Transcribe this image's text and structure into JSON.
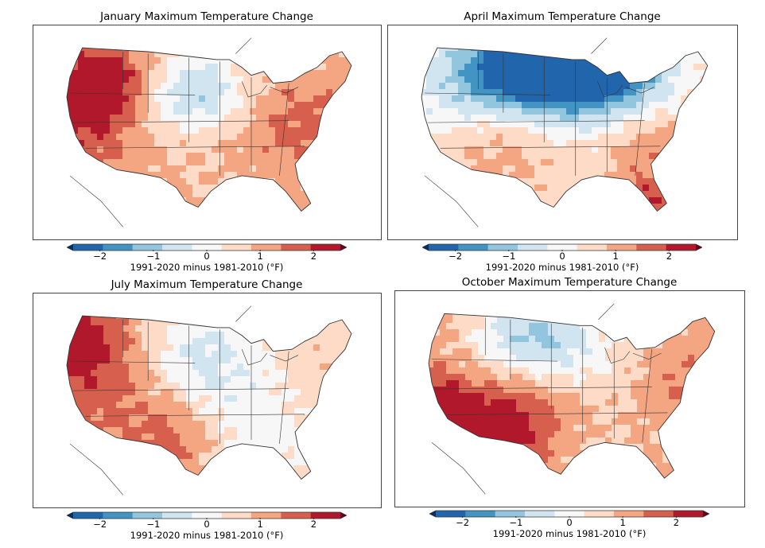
{
  "colorbar": {
    "label": "1991-2020 minus 1981-2010 (°F)",
    "ticks": [
      -2,
      -1,
      0,
      1,
      2
    ],
    "tick_labels": [
      "−2",
      "−1",
      "0",
      "1",
      "2"
    ],
    "range": [
      -2.5,
      2.5
    ],
    "colors": [
      "#2166ac",
      "#4393c3",
      "#92c5de",
      "#d1e5f0",
      "#f7f7f7",
      "#fddbc7",
      "#f4a582",
      "#d6604d",
      "#b2182b"
    ]
  },
  "panels": [
    {
      "title": "January Maximum Temperature Change",
      "field": {
        "base": 0.7,
        "n_lat": 0.0,
        "w": 0.6,
        "e": 0.3,
        "spots": [
          [
            0.12,
            0.35,
            0.14,
            1.2
          ],
          [
            0.2,
            0.25,
            0.1,
            0.8
          ],
          [
            0.42,
            0.25,
            0.12,
            -1.1
          ],
          [
            0.48,
            0.35,
            0.1,
            -0.6
          ],
          [
            0.8,
            0.45,
            0.12,
            0.7
          ],
          [
            0.3,
            0.4,
            0.1,
            -0.4
          ],
          [
            0.6,
            0.6,
            0.15,
            0.2
          ]
        ]
      }
    },
    {
      "title": "April Maximum Temperature Change",
      "field": {
        "base": 0.4,
        "n_lat": 0.0,
        "w": 0.0,
        "e": 0.1,
        "spots": [
          [
            0.38,
            0.12,
            0.16,
            -1.6
          ],
          [
            0.48,
            0.15,
            0.14,
            -2.0
          ],
          [
            0.6,
            0.15,
            0.14,
            -1.8
          ],
          [
            0.28,
            0.2,
            0.12,
            -0.9
          ],
          [
            0.72,
            0.18,
            0.12,
            -0.8
          ],
          [
            0.3,
            0.6,
            0.14,
            0.7
          ],
          [
            0.8,
            0.6,
            0.12,
            0.8
          ],
          [
            0.76,
            0.85,
            0.08,
            1.2
          ],
          [
            0.1,
            0.3,
            0.12,
            -0.5
          ]
        ]
      }
    },
    {
      "title": "July Maximum Temperature Change",
      "field": {
        "base": 0.5,
        "n_lat": 0.0,
        "w": 0.8,
        "e": -0.1,
        "spots": [
          [
            0.08,
            0.2,
            0.12,
            1.2
          ],
          [
            0.4,
            0.7,
            0.12,
            0.9
          ],
          [
            0.44,
            0.25,
            0.12,
            -0.9
          ],
          [
            0.58,
            0.5,
            0.14,
            -0.6
          ],
          [
            0.65,
            0.75,
            0.1,
            -0.4
          ],
          [
            0.85,
            0.35,
            0.12,
            0.3
          ],
          [
            0.2,
            0.45,
            0.14,
            0.4
          ]
        ]
      }
    },
    {
      "title": "October Maximum Temperature Change",
      "field": {
        "base": 0.7,
        "n_lat": 0.0,
        "w": 0.5,
        "e": 0.3,
        "spots": [
          [
            0.3,
            0.2,
            0.12,
            -0.9
          ],
          [
            0.42,
            0.18,
            0.12,
            -1.1
          ],
          [
            0.22,
            0.7,
            0.14,
            1.1
          ],
          [
            0.08,
            0.55,
            0.1,
            0.9
          ],
          [
            0.35,
            0.55,
            0.12,
            0.6
          ],
          [
            0.85,
            0.4,
            0.12,
            0.5
          ],
          [
            0.6,
            0.3,
            0.12,
            -0.3
          ]
        ]
      }
    }
  ]
}
